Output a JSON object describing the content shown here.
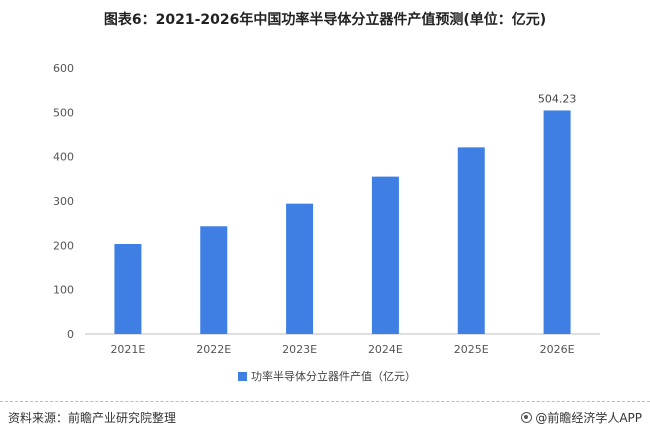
{
  "title": "图表6：2021-2026年中国功率半导体分立器件产值预测(单位：亿元)",
  "source": "资料来源：前瞻产业研究院整理",
  "brand": "@前瞻经济学人APP",
  "colors": {
    "bar": "#3f7fe3",
    "axis": "#bfbfbf",
    "text": "#555555"
  },
  "chart_data": {
    "type": "bar",
    "title": "图表6：2021-2026年中国功率半导体分立器件产值预测(单位：亿元)",
    "categories": [
      "2021E",
      "2022E",
      "2023E",
      "2024E",
      "2025E",
      "2026E"
    ],
    "series": [
      {
        "name": "功率半导体分立器件产值（亿元）",
        "values": [
          203,
          243,
          294,
          355,
          421,
          504.23
        ]
      }
    ],
    "data_labels": [
      null,
      null,
      null,
      null,
      null,
      "504.23"
    ],
    "yticks": [
      "0",
      "100",
      "200",
      "300",
      "400",
      "500",
      "600"
    ],
    "ylim": [
      0,
      600
    ],
    "xlabel": "",
    "ylabel": "",
    "grid": false,
    "legend_position": "bottom"
  }
}
